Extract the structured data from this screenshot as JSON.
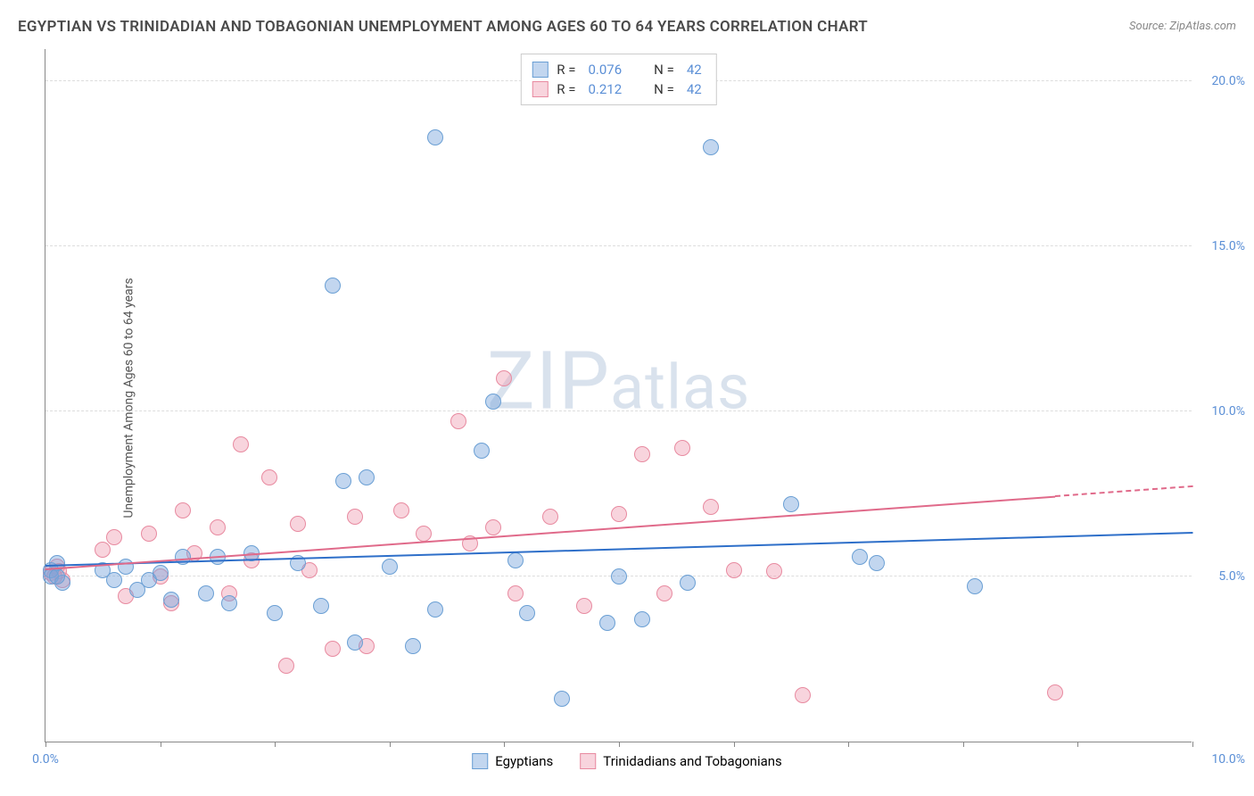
{
  "chart": {
    "type": "scatter",
    "title": "EGYPTIAN VS TRINIDADIAN AND TOBAGONIAN UNEMPLOYMENT AMONG AGES 60 TO 64 YEARS CORRELATION CHART",
    "source_label": "Source: ZipAtlas.com",
    "y_axis_label": "Unemployment Among Ages 60 to 64 years",
    "watermark": "ZIPatlas",
    "background_color": "#ffffff",
    "grid_color": "#dddddd",
    "axis_color": "#888888",
    "tick_label_color": "#5b8fd6",
    "xlim": [
      0,
      10
    ],
    "ylim": [
      0,
      21
    ],
    "x_tick_positions": [
      0,
      1,
      2,
      3,
      4,
      5,
      6,
      7,
      8,
      9,
      10
    ],
    "x_tick_labels": {
      "0": "0.0%",
      "10": "10.0%"
    },
    "y_gridlines": [
      5,
      10,
      15,
      20
    ],
    "y_tick_labels": {
      "5": "5.0%",
      "10": "10.0%",
      "15": "15.0%",
      "20": "20.0%"
    },
    "series": {
      "egyptians": {
        "label": "Egyptians",
        "fill_color": "rgba(120, 165, 220, 0.45)",
        "stroke_color": "#6a9fd4",
        "trend_color": "#2e6fc9",
        "marker_radius": 9,
        "R": "0.076",
        "N": "42",
        "trend": {
          "x1": 0,
          "y1": 5.3,
          "x2": 10,
          "y2": 6.3,
          "dash_from_x": 10
        },
        "points": [
          [
            0.05,
            5.2
          ],
          [
            0.05,
            5.0
          ],
          [
            0.1,
            5.4
          ],
          [
            0.15,
            4.8
          ],
          [
            0.1,
            5.0
          ],
          [
            0.5,
            5.2
          ],
          [
            0.6,
            4.9
          ],
          [
            0.7,
            5.3
          ],
          [
            0.8,
            4.6
          ],
          [
            0.9,
            4.9
          ],
          [
            1.0,
            5.1
          ],
          [
            1.1,
            4.3
          ],
          [
            1.2,
            5.6
          ],
          [
            1.4,
            4.5
          ],
          [
            1.5,
            5.6
          ],
          [
            1.6,
            4.2
          ],
          [
            1.8,
            5.7
          ],
          [
            2.0,
            3.9
          ],
          [
            2.2,
            5.4
          ],
          [
            2.4,
            4.1
          ],
          [
            2.5,
            13.8
          ],
          [
            2.6,
            7.9
          ],
          [
            2.7,
            3.0
          ],
          [
            2.8,
            8.0
          ],
          [
            3.0,
            5.3
          ],
          [
            3.2,
            2.9
          ],
          [
            3.4,
            18.3
          ],
          [
            3.4,
            4.0
          ],
          [
            3.8,
            8.8
          ],
          [
            3.9,
            10.3
          ],
          [
            4.1,
            5.5
          ],
          [
            4.2,
            3.9
          ],
          [
            4.5,
            1.3
          ],
          [
            4.9,
            3.6
          ],
          [
            5.0,
            5.0
          ],
          [
            5.2,
            3.7
          ],
          [
            5.6,
            4.8
          ],
          [
            5.8,
            18.0
          ],
          [
            6.5,
            7.2
          ],
          [
            7.1,
            5.6
          ],
          [
            8.1,
            4.7
          ],
          [
            7.25,
            5.4
          ]
        ]
      },
      "trinidadians": {
        "label": "Trinidadians and Tobagonians",
        "fill_color": "rgba(240, 160, 180, 0.45)",
        "stroke_color": "#e88aa0",
        "trend_color": "#e06a8a",
        "marker_radius": 9,
        "R": "0.212",
        "N": "42",
        "trend": {
          "x1": 0,
          "y1": 5.2,
          "x2": 8.8,
          "y2": 7.4,
          "dash_from_x": 8.8,
          "dash_to_x": 10,
          "dash_to_y": 7.7
        },
        "points": [
          [
            0.05,
            5.1
          ],
          [
            0.1,
            5.3
          ],
          [
            0.15,
            4.9
          ],
          [
            0.12,
            5.15
          ],
          [
            0.08,
            5.0
          ],
          [
            0.5,
            5.8
          ],
          [
            0.6,
            6.2
          ],
          [
            0.7,
            4.4
          ],
          [
            0.9,
            6.3
          ],
          [
            1.0,
            5.0
          ],
          [
            1.1,
            4.2
          ],
          [
            1.2,
            7.0
          ],
          [
            1.3,
            5.7
          ],
          [
            1.5,
            6.5
          ],
          [
            1.6,
            4.5
          ],
          [
            1.7,
            9.0
          ],
          [
            1.8,
            5.5
          ],
          [
            1.95,
            8.0
          ],
          [
            2.1,
            2.3
          ],
          [
            2.2,
            6.6
          ],
          [
            2.3,
            5.2
          ],
          [
            2.5,
            2.8
          ],
          [
            2.7,
            6.8
          ],
          [
            2.8,
            2.9
          ],
          [
            3.1,
            7.0
          ],
          [
            3.3,
            6.3
          ],
          [
            3.6,
            9.7
          ],
          [
            3.7,
            6.0
          ],
          [
            3.9,
            6.5
          ],
          [
            4.0,
            11.0
          ],
          [
            4.1,
            4.5
          ],
          [
            4.4,
            6.8
          ],
          [
            4.7,
            4.1
          ],
          [
            5.0,
            6.9
          ],
          [
            5.2,
            8.7
          ],
          [
            5.4,
            4.5
          ],
          [
            5.55,
            8.9
          ],
          [
            5.8,
            7.1
          ],
          [
            6.0,
            5.2
          ],
          [
            6.35,
            5.15
          ],
          [
            6.6,
            1.4
          ],
          [
            8.8,
            1.5
          ]
        ]
      }
    },
    "legend_top": {
      "rows": [
        {
          "swatch": "egyptians",
          "r_label": "R =",
          "r_val": "0.076",
          "n_label": "N =",
          "n_val": "42"
        },
        {
          "swatch": "trinidadians",
          "r_label": "R =",
          "r_val": "0.212",
          "n_label": "N =",
          "n_val": "42"
        }
      ]
    },
    "legend_bottom": [
      {
        "swatch": "egyptians",
        "label_key": "series.egyptians.label"
      },
      {
        "swatch": "trinidadians",
        "label_key": "series.trinidadians.label"
      }
    ]
  }
}
